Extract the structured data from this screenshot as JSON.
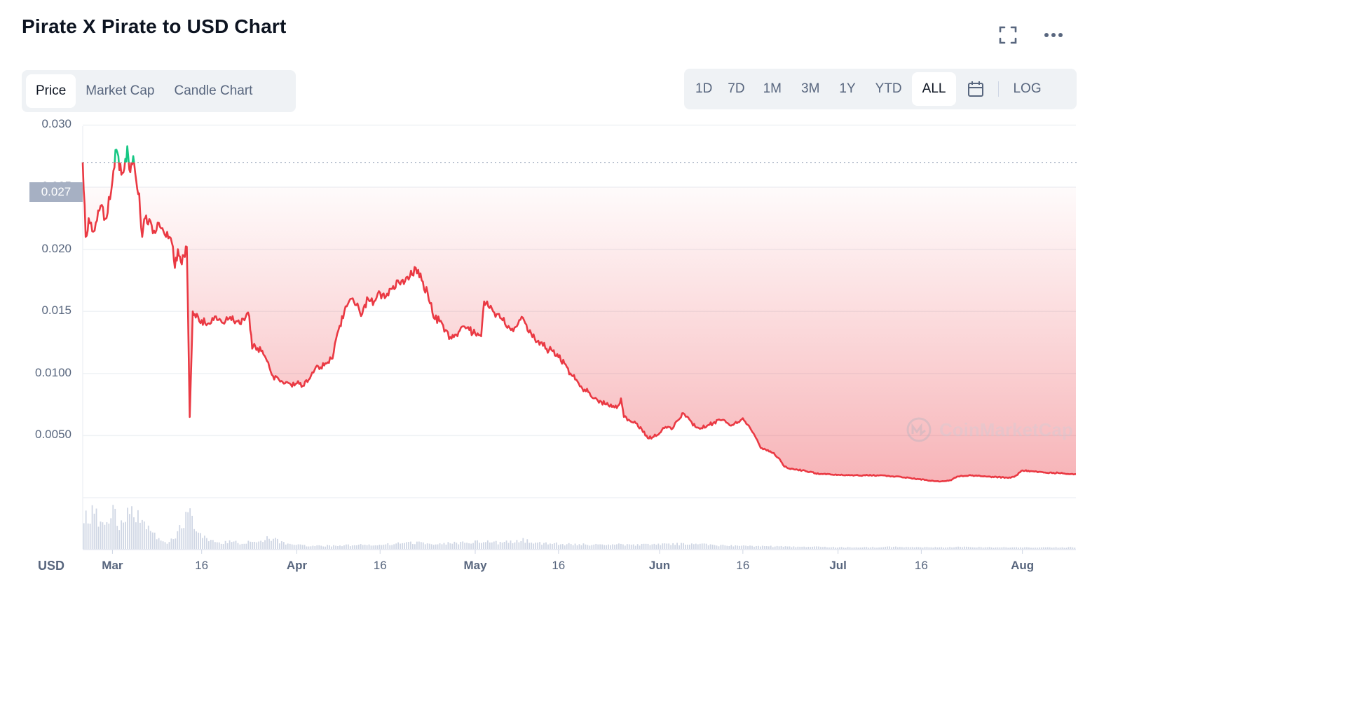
{
  "header": {
    "title": "Pirate X Pirate to USD Chart",
    "fullscreen_icon": "fullscreen-icon",
    "more_icon": "more-horizontal-icon"
  },
  "chart_tabs": {
    "items": [
      "Price",
      "Market Cap",
      "Candle Chart"
    ],
    "active": "Price"
  },
  "range_tabs": {
    "items": [
      "1D",
      "7D",
      "1M",
      "3M",
      "1Y",
      "YTD",
      "ALL"
    ],
    "active": "ALL",
    "calendar_icon": "calendar-icon",
    "log_label": "LOG"
  },
  "current_price_label": "0.027",
  "currency_label": "USD",
  "watermark": "CoinMarketCap",
  "colors": {
    "line_down": "#ea3943",
    "line_up": "#16c784",
    "grid": "#eff2f5",
    "volume": "#cfd6e4",
    "axis_text": "#58667e"
  },
  "chart_data": {
    "type": "line",
    "title": "Pirate X Pirate to USD Chart",
    "ylabel": "USD",
    "ylim": [
      0,
      0.032
    ],
    "y_ticks": [
      "0.0050",
      "0.0100",
      "0.015",
      "0.020",
      "0.025",
      "0.030"
    ],
    "y_tick_values": [
      0.005,
      0.01,
      0.015,
      0.02,
      0.025,
      0.03
    ],
    "x_ticks": [
      {
        "label": "Mar",
        "day": 1,
        "major": true
      },
      {
        "label": "16",
        "day": 16,
        "major": false
      },
      {
        "label": "Apr",
        "day": 32,
        "major": true
      },
      {
        "label": "16",
        "day": 46,
        "major": false
      },
      {
        "label": "May",
        "day": 62,
        "major": true
      },
      {
        "label": "16",
        "day": 76,
        "major": false
      },
      {
        "label": "Jun",
        "day": 93,
        "major": true
      },
      {
        "label": "16",
        "day": 107,
        "major": false
      },
      {
        "label": "Jul",
        "day": 123,
        "major": true
      },
      {
        "label": "16",
        "day": 137,
        "major": false
      },
      {
        "label": "Aug",
        "day": 154,
        "major": true
      }
    ],
    "reference_price": 0.027,
    "series": [
      {
        "values": [
          [
            -4,
            0.027
          ],
          [
            -3.5,
            0.021
          ],
          [
            -3,
            0.0225
          ],
          [
            -2,
            0.0215
          ],
          [
            -1,
            0.0235
          ],
          [
            0,
            0.0225
          ],
          [
            1,
            0.0255
          ],
          [
            1.5,
            0.028
          ],
          [
            2,
            0.0275
          ],
          [
            2.5,
            0.026
          ],
          [
            3,
            0.0265
          ],
          [
            3.5,
            0.0283
          ],
          [
            4,
            0.0262
          ],
          [
            4.5,
            0.0275
          ],
          [
            5,
            0.0255
          ],
          [
            5.5,
            0.0245
          ],
          [
            6,
            0.021
          ],
          [
            6.5,
            0.0225
          ],
          [
            7,
            0.022
          ],
          [
            8,
            0.0215
          ],
          [
            9,
            0.0218
          ],
          [
            10,
            0.021
          ],
          [
            11,
            0.0205
          ],
          [
            11.5,
            0.0185
          ],
          [
            12,
            0.02
          ],
          [
            12.5,
            0.019
          ],
          [
            13,
            0.0195
          ],
          [
            13.5,
            0.0202
          ],
          [
            14,
            0.0065
          ],
          [
            14.5,
            0.015
          ],
          [
            15,
            0.0145
          ],
          [
            16,
            0.0143
          ],
          [
            17,
            0.014
          ],
          [
            18,
            0.0143
          ],
          [
            19,
            0.0144
          ],
          [
            20,
            0.0142
          ],
          [
            21,
            0.0143
          ],
          [
            22,
            0.0142
          ],
          [
            23,
            0.0144
          ],
          [
            24,
            0.0146
          ],
          [
            24.5,
            0.012
          ],
          [
            25,
            0.0122
          ],
          [
            26,
            0.0118
          ],
          [
            27,
            0.011
          ],
          [
            28,
            0.0098
          ],
          [
            29,
            0.0095
          ],
          [
            30,
            0.0092
          ],
          [
            31,
            0.0091
          ],
          [
            32,
            0.0092
          ],
          [
            33,
            0.009
          ],
          [
            34,
            0.0095
          ],
          [
            35,
            0.0103
          ],
          [
            36,
            0.0105
          ],
          [
            37,
            0.0108
          ],
          [
            38,
            0.0112
          ],
          [
            39,
            0.0135
          ],
          [
            40,
            0.015
          ],
          [
            41,
            0.016
          ],
          [
            42,
            0.0155
          ],
          [
            43,
            0.0148
          ],
          [
            44,
            0.016
          ],
          [
            45,
            0.0158
          ],
          [
            46,
            0.0165
          ],
          [
            47,
            0.0162
          ],
          [
            48,
            0.0168
          ],
          [
            49,
            0.0175
          ],
          [
            50,
            0.0172
          ],
          [
            51,
            0.0178
          ],
          [
            52,
            0.0185
          ],
          [
            53,
            0.0175
          ],
          [
            54,
            0.0165
          ],
          [
            55,
            0.0145
          ],
          [
            56,
            0.0142
          ],
          [
            57,
            0.0135
          ],
          [
            58,
            0.0128
          ],
          [
            59,
            0.013
          ],
          [
            60,
            0.0138
          ],
          [
            61,
            0.0135
          ],
          [
            62,
            0.0132
          ],
          [
            63,
            0.013
          ],
          [
            63.5,
            0.0158
          ],
          [
            64,
            0.0158
          ],
          [
            65,
            0.015
          ],
          [
            66,
            0.0148
          ],
          [
            67,
            0.014
          ],
          [
            68,
            0.0135
          ],
          [
            69,
            0.0138
          ],
          [
            70,
            0.0145
          ],
          [
            71,
            0.0133
          ],
          [
            72,
            0.0128
          ],
          [
            73,
            0.0125
          ],
          [
            74,
            0.012
          ],
          [
            75,
            0.0118
          ],
          [
            76,
            0.0113
          ],
          [
            77,
            0.0108
          ],
          [
            78,
            0.01
          ],
          [
            79,
            0.0095
          ],
          [
            80,
            0.0088
          ],
          [
            81,
            0.0085
          ],
          [
            82,
            0.008
          ],
          [
            83,
            0.0078
          ],
          [
            84,
            0.0075
          ],
          [
            85,
            0.0073
          ],
          [
            86,
            0.0074
          ],
          [
            86.5,
            0.008
          ],
          [
            87,
            0.0065
          ],
          [
            88,
            0.0062
          ],
          [
            89,
            0.006
          ],
          [
            90,
            0.0055
          ],
          [
            91,
            0.0048
          ],
          [
            92,
            0.0049
          ],
          [
            93,
            0.0052
          ],
          [
            94,
            0.0057
          ],
          [
            95,
            0.0055
          ],
          [
            96,
            0.0062
          ],
          [
            97,
            0.0068
          ],
          [
            98,
            0.0063
          ],
          [
            99,
            0.0057
          ],
          [
            100,
            0.0056
          ],
          [
            101,
            0.0058
          ],
          [
            102,
            0.006
          ],
          [
            103,
            0.0063
          ],
          [
            104,
            0.0062
          ],
          [
            105,
            0.0058
          ],
          [
            106,
            0.006
          ],
          [
            107,
            0.0064
          ],
          [
            108,
            0.0058
          ],
          [
            109,
            0.005
          ],
          [
            110,
            0.004
          ],
          [
            111,
            0.0038
          ],
          [
            112,
            0.0036
          ],
          [
            113,
            0.0032
          ],
          [
            114,
            0.0025
          ],
          [
            115,
            0.0023
          ],
          [
            117,
            0.0022
          ],
          [
            120,
            0.0019
          ],
          [
            125,
            0.0018
          ],
          [
            130,
            0.0018
          ],
          [
            135,
            0.0016
          ],
          [
            138,
            0.0014
          ],
          [
            140,
            0.0013
          ],
          [
            142,
            0.0014
          ],
          [
            143,
            0.0017
          ],
          [
            145,
            0.0018
          ],
          [
            148,
            0.0017
          ],
          [
            152,
            0.0016
          ],
          [
            153,
            0.0018
          ],
          [
            154,
            0.0022
          ],
          [
            156,
            0.0021
          ],
          [
            158,
            0.002
          ],
          [
            160,
            0.002
          ],
          [
            163,
            0.0019
          ]
        ]
      }
    ],
    "volume_values": [
      [
        -4,
        0.55
      ],
      [
        -3,
        0.7
      ],
      [
        -2,
        0.8
      ],
      [
        -1,
        0.45
      ],
      [
        0,
        0.6
      ],
      [
        1,
        0.9
      ],
      [
        2,
        0.5
      ],
      [
        3,
        0.7
      ],
      [
        4,
        1.0
      ],
      [
        5,
        0.75
      ],
      [
        6,
        0.55
      ],
      [
        7,
        0.4
      ],
      [
        8,
        0.3
      ],
      [
        9,
        0.15
      ],
      [
        10,
        0.1
      ],
      [
        11,
        0.2
      ],
      [
        12,
        0.35
      ],
      [
        13,
        0.6
      ],
      [
        14,
        0.75
      ],
      [
        15,
        0.5
      ],
      [
        16,
        0.3
      ],
      [
        17,
        0.2
      ],
      [
        18,
        0.15
      ],
      [
        19,
        0.12
      ],
      [
        20,
        0.14
      ],
      [
        21,
        0.16
      ],
      [
        22,
        0.13
      ],
      [
        23,
        0.12
      ],
      [
        24,
        0.15
      ],
      [
        25,
        0.14
      ],
      [
        26,
        0.18
      ],
      [
        27,
        0.2
      ],
      [
        28,
        0.22
      ],
      [
        29,
        0.16
      ],
      [
        30,
        0.1
      ],
      [
        32,
        0.08
      ],
      [
        34,
        0.06
      ],
      [
        36,
        0.06
      ],
      [
        40,
        0.07
      ],
      [
        44,
        0.09
      ],
      [
        48,
        0.1
      ],
      [
        52,
        0.12
      ],
      [
        56,
        0.1
      ],
      [
        60,
        0.13
      ],
      [
        64,
        0.16
      ],
      [
        66,
        0.12
      ],
      [
        68,
        0.15
      ],
      [
        70,
        0.18
      ],
      [
        72,
        0.12
      ],
      [
        76,
        0.1
      ],
      [
        80,
        0.09
      ],
      [
        84,
        0.08
      ],
      [
        88,
        0.09
      ],
      [
        92,
        0.08
      ],
      [
        96,
        0.1
      ],
      [
        100,
        0.09
      ],
      [
        104,
        0.07
      ],
      [
        108,
        0.06
      ],
      [
        112,
        0.05
      ],
      [
        116,
        0.04
      ],
      [
        120,
        0.04
      ],
      [
        124,
        0.03
      ],
      [
        128,
        0.03
      ],
      [
        132,
        0.04
      ],
      [
        136,
        0.03
      ],
      [
        140,
        0.03
      ],
      [
        144,
        0.04
      ],
      [
        148,
        0.03
      ],
      [
        152,
        0.03
      ],
      [
        156,
        0.03
      ],
      [
        160,
        0.03
      ],
      [
        163,
        0.03
      ]
    ]
  }
}
